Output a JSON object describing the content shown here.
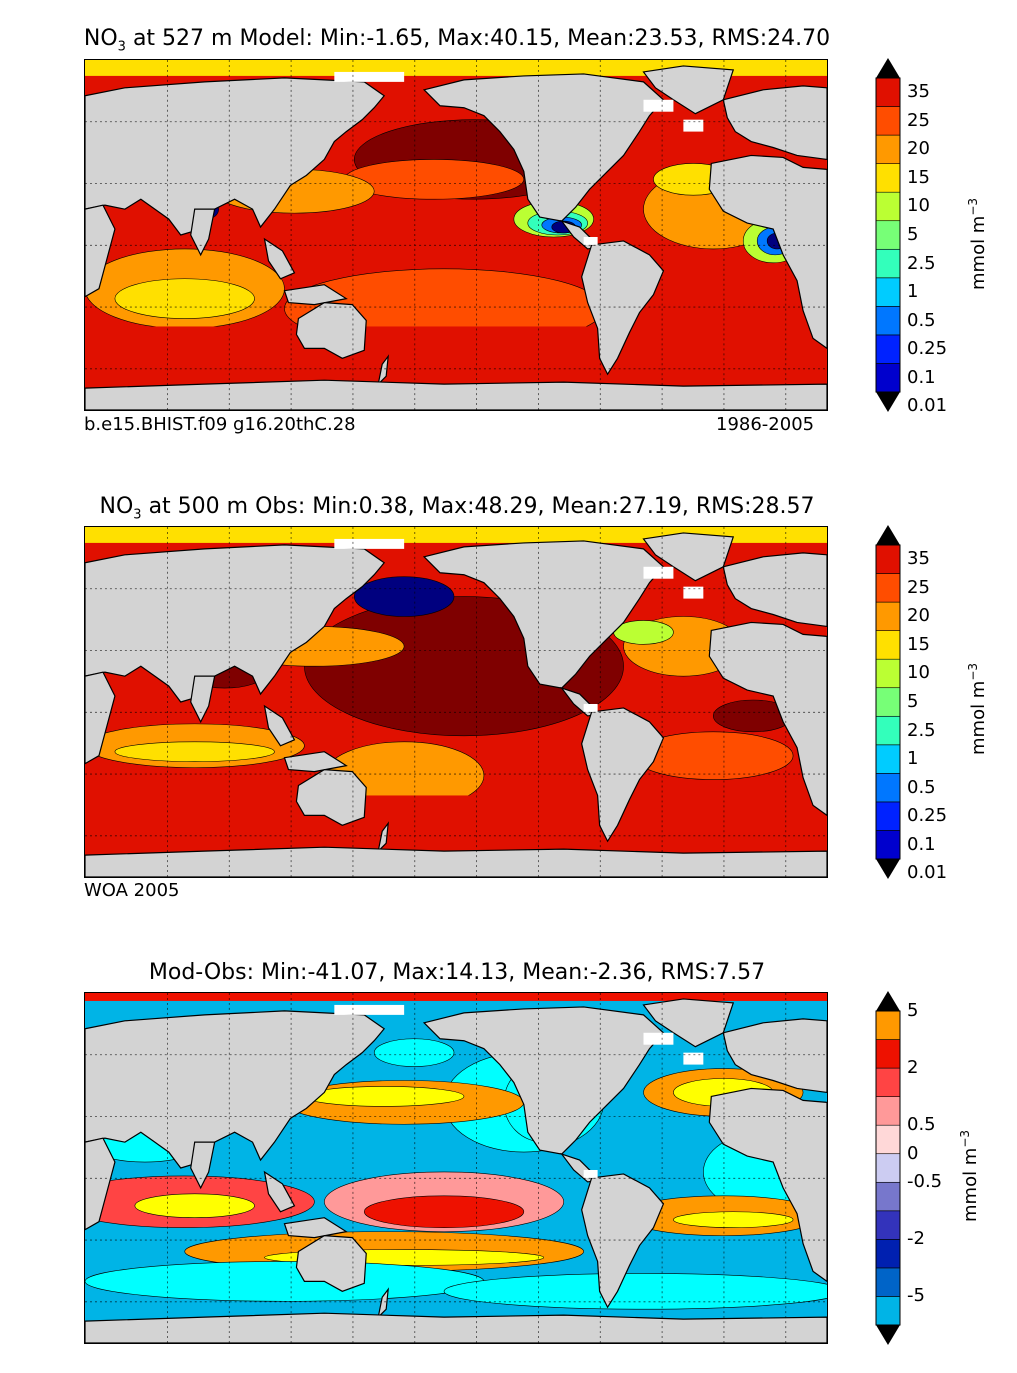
{
  "panels": [
    {
      "id": "model",
      "title_pre": "NO",
      "title_sub": "3",
      "title_post": " at 527 m Model: Min:-1.65, Max:40.15, Mean:23.53, RMS:24.70",
      "footer_left": "b.e15.BHIST.f09 g16.20thC.28",
      "footer_right": "1986-2005",
      "colorbar_label": "mmol m",
      "colorbar_exp": "−3",
      "levels": [
        "0.01",
        "0.1",
        "0.25",
        "0.5",
        "1",
        "2.5",
        "5",
        "10",
        "15",
        "20",
        "25",
        "35"
      ],
      "colors": [
        "#00007f",
        "#0000cd",
        "#0022ff",
        "#0077ff",
        "#00ccff",
        "#33ffbb",
        "#77ff77",
        "#bbff33",
        "#ffe000",
        "#ff9900",
        "#ff4d00",
        "#e01000",
        "#7f0000"
      ]
    },
    {
      "id": "obs",
      "title_pre": "NO",
      "title_sub": "3",
      "title_post": " at 500 m Obs: Min:0.38, Max:48.29, Mean:27.19, RMS:28.57",
      "footer_left": "WOA 2005",
      "colorbar_label": "mmol m",
      "colorbar_exp": "−3",
      "levels": [
        "0.01",
        "0.1",
        "0.25",
        "0.5",
        "1",
        "2.5",
        "5",
        "10",
        "15",
        "20",
        "25",
        "35"
      ],
      "colors": [
        "#00007f",
        "#0000cd",
        "#0022ff",
        "#0077ff",
        "#00ccff",
        "#33ffbb",
        "#77ff77",
        "#bbff33",
        "#ffe000",
        "#ff9900",
        "#ff4d00",
        "#e01000",
        "#7f0000"
      ]
    },
    {
      "id": "diff",
      "title": "Mod-Obs: Min:-41.07, Max:14.13, Mean:-2.36, RMS:7.57",
      "colorbar_label": "mmol m",
      "colorbar_exp": "−3",
      "levels": [
        "-5",
        "-2",
        "-0.5",
        "0",
        "0.5",
        "2",
        "5"
      ],
      "level_edges": 12,
      "colors": [
        "#00ffff",
        "#00b4e6",
        "#0064c8",
        "#0020b0",
        "#3333bb",
        "#7777cc",
        "#ccccf2",
        "#ffd8d8",
        "#ff9999",
        "#ff4444",
        "#ee1100",
        "#ff9900",
        "#ffff00"
      ]
    }
  ],
  "chart_data": {
    "type": "heatmap",
    "description_axes": "Global ocean map, longitude 20E to 380E (wrapping), latitude 80S to 90N",
    "xlim": [
      20,
      380
    ],
    "ylim": [
      -80,
      90
    ],
    "grid": true,
    "maps": [
      "model",
      "obs",
      "diff"
    ]
  },
  "colors": {
    "land": "#d3d3d3",
    "missing": "#ffffff",
    "coast": "#000000"
  }
}
